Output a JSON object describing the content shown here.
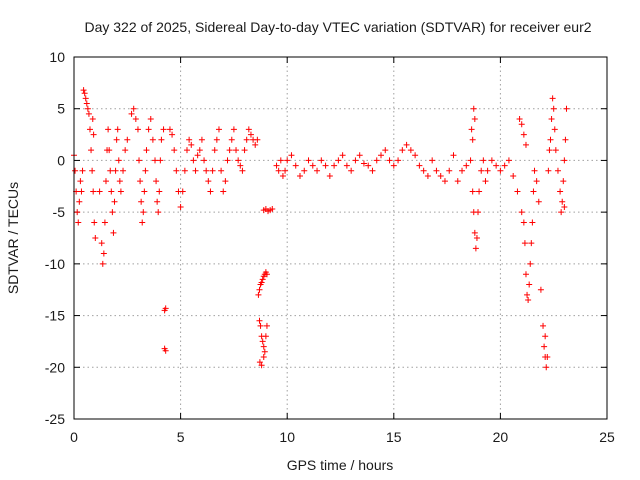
{
  "chart_data": {
    "type": "scatter",
    "title": "Day 322 of 2025, Sidereal Day-to-day VTEC variation (SDTVAR) for receiver eur2",
    "xlabel": "GPS time / hours",
    "ylabel": "SDTVAR / TECUs",
    "xlim": [
      0,
      25
    ],
    "ylim": [
      -25,
      10
    ],
    "xticks": [
      0,
      5,
      10,
      15,
      20,
      25
    ],
    "yticks": [
      -25,
      -20,
      -15,
      -10,
      -5,
      0,
      5,
      10
    ],
    "xtick_labels": [
      "0",
      "5",
      "10",
      "15",
      "20",
      "25"
    ],
    "ytick_labels": [
      "-25",
      "-20",
      "-15",
      "-10",
      "-5",
      "0",
      "5",
      "10"
    ],
    "grid": true,
    "marker": "+",
    "marker_color": "#ff0000",
    "series": [
      {
        "name": "eur2",
        "points": [
          [
            0.0,
            0.5
          ],
          [
            0.05,
            -1
          ],
          [
            0.1,
            -3
          ],
          [
            0.15,
            -5
          ],
          [
            0.2,
            -6
          ],
          [
            0.25,
            -4
          ],
          [
            0.3,
            -2
          ],
          [
            0.35,
            -3
          ],
          [
            0.4,
            -1
          ],
          [
            0.45,
            6.8
          ],
          [
            0.5,
            6.5
          ],
          [
            0.55,
            6
          ],
          [
            0.6,
            5.5
          ],
          [
            0.65,
            5
          ],
          [
            0.7,
            4.5
          ],
          [
            0.75,
            3
          ],
          [
            0.8,
            1
          ],
          [
            0.85,
            -1
          ],
          [
            0.9,
            -3
          ],
          [
            0.95,
            -6
          ],
          [
            1.0,
            -7.5
          ],
          [
            0.88,
            4
          ],
          [
            0.92,
            2.5
          ],
          [
            1.2,
            -3
          ],
          [
            1.3,
            -8
          ],
          [
            1.35,
            -10
          ],
          [
            1.4,
            -9
          ],
          [
            1.45,
            -6
          ],
          [
            1.5,
            -2
          ],
          [
            1.55,
            1
          ],
          [
            1.6,
            3
          ],
          [
            1.65,
            1
          ],
          [
            1.7,
            -1
          ],
          [
            1.75,
            -3
          ],
          [
            1.8,
            -5
          ],
          [
            1.85,
            -7
          ],
          [
            1.9,
            -4
          ],
          [
            1.95,
            -1
          ],
          [
            2.0,
            2
          ],
          [
            2.05,
            3
          ],
          [
            2.1,
            0
          ],
          [
            2.15,
            -2
          ],
          [
            2.2,
            -3
          ],
          [
            2.3,
            -1
          ],
          [
            2.4,
            1
          ],
          [
            2.5,
            2
          ],
          [
            2.7,
            4.5
          ],
          [
            2.8,
            5
          ],
          [
            2.9,
            4
          ],
          [
            3.0,
            3
          ],
          [
            3.05,
            0
          ],
          [
            3.1,
            -2
          ],
          [
            3.15,
            -4
          ],
          [
            3.2,
            -6
          ],
          [
            3.25,
            -5
          ],
          [
            3.3,
            -3
          ],
          [
            3.35,
            -1
          ],
          [
            3.4,
            1
          ],
          [
            3.5,
            3
          ],
          [
            3.6,
            4
          ],
          [
            3.7,
            2
          ],
          [
            3.8,
            0
          ],
          [
            3.85,
            -2
          ],
          [
            3.9,
            -4
          ],
          [
            3.95,
            -5
          ],
          [
            4.0,
            -3
          ],
          [
            4.05,
            0
          ],
          [
            4.1,
            2
          ],
          [
            4.2,
            3
          ],
          [
            4.25,
            -14.5
          ],
          [
            4.3,
            -14.3
          ],
          [
            4.25,
            -18.2
          ],
          [
            4.3,
            -18.4
          ],
          [
            4.5,
            3
          ],
          [
            4.6,
            2.5
          ],
          [
            4.7,
            1
          ],
          [
            4.8,
            -1
          ],
          [
            4.9,
            -3
          ],
          [
            5.0,
            -4.5
          ],
          [
            5.1,
            -3
          ],
          [
            5.2,
            -1
          ],
          [
            5.3,
            1
          ],
          [
            5.4,
            2
          ],
          [
            5.5,
            1.5
          ],
          [
            5.6,
            0
          ],
          [
            5.7,
            -1
          ],
          [
            5.8,
            0.5
          ],
          [
            5.9,
            1
          ],
          [
            6.0,
            2
          ],
          [
            6.1,
            0
          ],
          [
            6.2,
            -1
          ],
          [
            6.3,
            -2
          ],
          [
            6.4,
            -3
          ],
          [
            6.5,
            -1
          ],
          [
            6.6,
            1
          ],
          [
            6.7,
            2
          ],
          [
            6.8,
            3
          ],
          [
            6.9,
            -1
          ],
          [
            7.0,
            -3
          ],
          [
            7.1,
            -2
          ],
          [
            7.2,
            0
          ],
          [
            7.3,
            1
          ],
          [
            7.4,
            2
          ],
          [
            7.5,
            3
          ],
          [
            7.6,
            1
          ],
          [
            7.7,
            0
          ],
          [
            7.8,
            -0.5
          ],
          [
            7.9,
            -1
          ],
          [
            8.0,
            1
          ],
          [
            8.1,
            2
          ],
          [
            8.2,
            3
          ],
          [
            8.3,
            2.5
          ],
          [
            8.4,
            2
          ],
          [
            8.5,
            1.5
          ],
          [
            8.6,
            2
          ],
          [
            8.65,
            -13
          ],
          [
            8.7,
            -12.5
          ],
          [
            8.75,
            -12
          ],
          [
            8.8,
            -11.8
          ],
          [
            8.85,
            -11.5
          ],
          [
            8.9,
            -11.2
          ],
          [
            8.95,
            -11
          ],
          [
            9.0,
            -10.8
          ],
          [
            9.05,
            -11
          ],
          [
            8.7,
            -15.5
          ],
          [
            8.75,
            -16
          ],
          [
            8.8,
            -17
          ],
          [
            8.85,
            -17.5
          ],
          [
            8.9,
            -18
          ],
          [
            8.95,
            -18.5
          ],
          [
            9.0,
            -17
          ],
          [
            9.05,
            -16
          ],
          [
            8.72,
            -19.5
          ],
          [
            8.8,
            -19.8
          ],
          [
            8.9,
            -19
          ],
          [
            8.9,
            -4.8
          ],
          [
            9.0,
            -4.7
          ],
          [
            9.1,
            -4.9
          ],
          [
            9.2,
            -4.8
          ],
          [
            9.3,
            -4.7
          ],
          [
            9.5,
            -0.5
          ],
          [
            9.6,
            -1
          ],
          [
            9.7,
            0
          ],
          [
            9.8,
            -1.5
          ],
          [
            9.9,
            -1
          ],
          [
            10.0,
            0
          ],
          [
            10.2,
            0.5
          ],
          [
            10.4,
            -0.5
          ],
          [
            10.6,
            -1.5
          ],
          [
            10.8,
            -1
          ],
          [
            11.0,
            0
          ],
          [
            11.2,
            -0.5
          ],
          [
            11.4,
            -1
          ],
          [
            11.6,
            0
          ],
          [
            11.8,
            -0.5
          ],
          [
            12.0,
            -1.5
          ],
          [
            12.2,
            -0.5
          ],
          [
            12.4,
            0
          ],
          [
            12.6,
            0.5
          ],
          [
            12.8,
            -0.5
          ],
          [
            13.0,
            -1
          ],
          [
            13.2,
            0
          ],
          [
            13.4,
            0.5
          ],
          [
            13.6,
            -0.3
          ],
          [
            13.8,
            -0.5
          ],
          [
            14.0,
            -1
          ],
          [
            14.2,
            0
          ],
          [
            14.4,
            0.5
          ],
          [
            14.6,
            1
          ],
          [
            14.8,
            0
          ],
          [
            15.0,
            -0.5
          ],
          [
            15.2,
            0
          ],
          [
            15.4,
            1
          ],
          [
            15.6,
            1.5
          ],
          [
            15.8,
            1
          ],
          [
            16.0,
            0.5
          ],
          [
            16.2,
            -0.5
          ],
          [
            16.4,
            -1
          ],
          [
            16.6,
            -1.5
          ],
          [
            16.8,
            0
          ],
          [
            17.0,
            -1
          ],
          [
            17.2,
            -1.5
          ],
          [
            17.4,
            -2
          ],
          [
            17.6,
            -1
          ],
          [
            17.8,
            0.5
          ],
          [
            18.0,
            -2
          ],
          [
            18.2,
            -1
          ],
          [
            18.4,
            -0.5
          ],
          [
            18.6,
            0
          ],
          [
            18.7,
            -3
          ],
          [
            18.75,
            -5
          ],
          [
            18.8,
            -7
          ],
          [
            18.85,
            -8.5
          ],
          [
            18.9,
            -7.5
          ],
          [
            18.95,
            -5
          ],
          [
            19.0,
            -3
          ],
          [
            19.1,
            -1
          ],
          [
            19.2,
            0
          ],
          [
            19.3,
            -2
          ],
          [
            19.4,
            -1
          ],
          [
            19.6,
            0
          ],
          [
            19.8,
            -0.5
          ],
          [
            20.0,
            -1
          ],
          [
            20.2,
            -0.5
          ],
          [
            20.4,
            0
          ],
          [
            20.6,
            -1.5
          ],
          [
            20.8,
            -3
          ],
          [
            21.0,
            -5
          ],
          [
            21.1,
            -6
          ],
          [
            21.15,
            -8
          ],
          [
            21.2,
            -11
          ],
          [
            21.25,
            -13
          ],
          [
            21.3,
            -13.5
          ],
          [
            21.35,
            -12
          ],
          [
            21.4,
            -10
          ],
          [
            21.45,
            -8
          ],
          [
            21.5,
            -6
          ],
          [
            21.55,
            -3
          ],
          [
            21.6,
            -1
          ],
          [
            21.7,
            -2
          ],
          [
            21.8,
            -4
          ],
          [
            21.9,
            -12.5
          ],
          [
            22.0,
            -16
          ],
          [
            22.05,
            -18
          ],
          [
            22.1,
            -19
          ],
          [
            22.15,
            -20
          ],
          [
            22.2,
            -19
          ],
          [
            22.1,
            -17
          ],
          [
            22.25,
            -1
          ],
          [
            22.3,
            1
          ],
          [
            22.35,
            2
          ],
          [
            22.4,
            4
          ],
          [
            22.45,
            6
          ],
          [
            22.5,
            5
          ],
          [
            22.55,
            3
          ],
          [
            22.6,
            1
          ],
          [
            22.7,
            -1
          ],
          [
            22.8,
            -3
          ],
          [
            22.85,
            -5
          ],
          [
            22.9,
            -4
          ],
          [
            22.95,
            -2
          ],
          [
            23.0,
            0
          ],
          [
            23.05,
            2
          ],
          [
            23.1,
            5
          ],
          [
            23.0,
            -4.5
          ],
          [
            18.75,
            5
          ],
          [
            18.8,
            4
          ],
          [
            18.65,
            3
          ],
          [
            18.7,
            2
          ],
          [
            20.9,
            4
          ],
          [
            21.0,
            3.5
          ],
          [
            21.1,
            2.5
          ],
          [
            21.2,
            1.5
          ]
        ]
      }
    ]
  }
}
